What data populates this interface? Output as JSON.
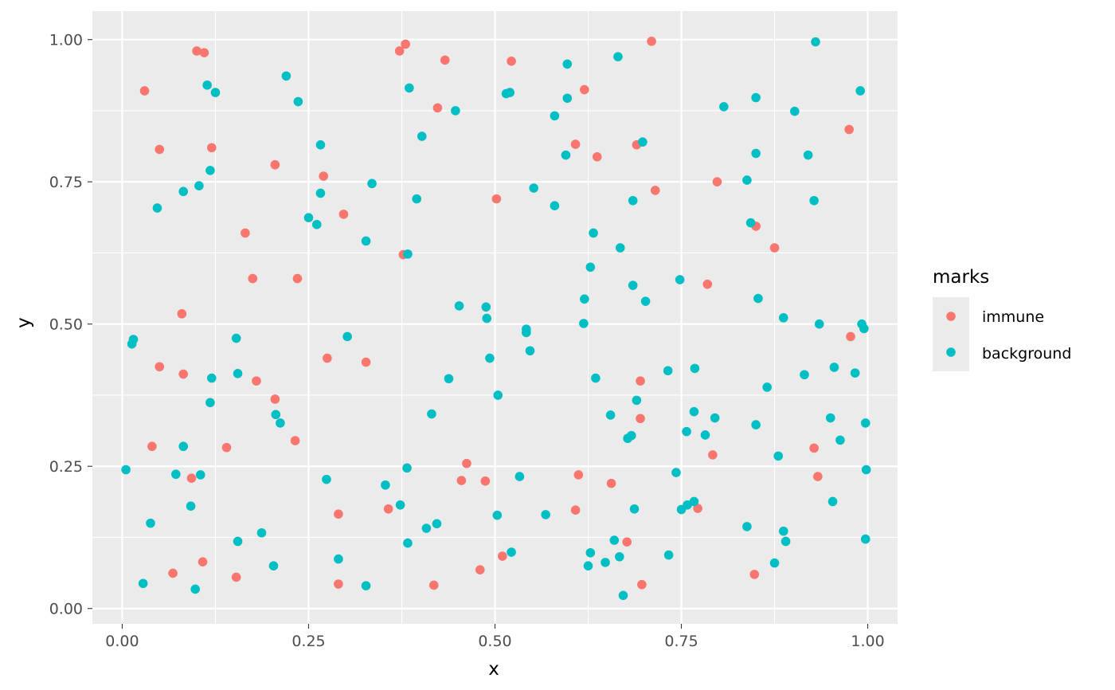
{
  "chart_data": {
    "type": "scatter",
    "title": "",
    "xlabel": "x",
    "ylabel": "y",
    "xlim": [
      -0.04,
      1.04
    ],
    "ylim": [
      -0.027,
      1.05
    ],
    "x_ticks": [
      0.0,
      0.25,
      0.5,
      0.75,
      1.0
    ],
    "y_ticks": [
      0.0,
      0.25,
      0.5,
      0.75,
      1.0
    ],
    "x_tick_labels": [
      "0.00",
      "0.25",
      "0.50",
      "0.75",
      "1.00"
    ],
    "y_tick_labels": [
      "0.00",
      "0.25",
      "0.50",
      "0.75",
      "1.00"
    ],
    "grid": true,
    "panel_background": "#EBEBEB",
    "legend": {
      "title": "marks",
      "position": "right"
    },
    "series": [
      {
        "name": "immune",
        "color": "#F8766D",
        "points": [
          [
            0.1,
            0.98
          ],
          [
            0.11,
            0.977
          ],
          [
            0.03,
            0.91
          ],
          [
            0.05,
            0.807
          ],
          [
            0.12,
            0.81
          ],
          [
            0.205,
            0.78
          ],
          [
            0.165,
            0.66
          ],
          [
            0.175,
            0.58
          ],
          [
            0.235,
            0.58
          ],
          [
            0.08,
            0.518
          ],
          [
            0.05,
            0.425
          ],
          [
            0.082,
            0.412
          ],
          [
            0.18,
            0.4
          ],
          [
            0.205,
            0.368
          ],
          [
            0.04,
            0.285
          ],
          [
            0.14,
            0.283
          ],
          [
            0.232,
            0.295
          ],
          [
            0.093,
            0.229
          ],
          [
            0.068,
            0.062
          ],
          [
            0.108,
            0.082
          ],
          [
            0.153,
            0.055
          ],
          [
            0.27,
            0.76
          ],
          [
            0.297,
            0.693
          ],
          [
            0.275,
            0.44
          ],
          [
            0.327,
            0.433
          ],
          [
            0.29,
            0.166
          ],
          [
            0.29,
            0.043
          ],
          [
            0.372,
            0.98
          ],
          [
            0.38,
            0.992
          ],
          [
            0.433,
            0.964
          ],
          [
            0.423,
            0.88
          ],
          [
            0.377,
            0.622
          ],
          [
            0.357,
            0.175
          ],
          [
            0.418,
            0.041
          ],
          [
            0.462,
            0.255
          ],
          [
            0.455,
            0.225
          ],
          [
            0.487,
            0.224
          ],
          [
            0.48,
            0.068
          ],
          [
            0.522,
            0.962
          ],
          [
            0.502,
            0.72
          ],
          [
            0.51,
            0.092
          ],
          [
            0.71,
            0.997
          ],
          [
            0.62,
            0.912
          ],
          [
            0.608,
            0.816
          ],
          [
            0.637,
            0.794
          ],
          [
            0.69,
            0.815
          ],
          [
            0.715,
            0.735
          ],
          [
            0.695,
            0.4
          ],
          [
            0.695,
            0.334
          ],
          [
            0.612,
            0.235
          ],
          [
            0.608,
            0.173
          ],
          [
            0.656,
            0.22
          ],
          [
            0.677,
            0.117
          ],
          [
            0.697,
            0.042
          ],
          [
            0.975,
            0.842
          ],
          [
            0.798,
            0.75
          ],
          [
            0.85,
            0.672
          ],
          [
            0.875,
            0.634
          ],
          [
            0.785,
            0.57
          ],
          [
            0.977,
            0.478
          ],
          [
            0.792,
            0.27
          ],
          [
            0.928,
            0.282
          ],
          [
            0.933,
            0.232
          ],
          [
            0.772,
            0.176
          ],
          [
            0.848,
            0.06
          ]
        ]
      },
      {
        "name": "background",
        "color": "#00BFC4",
        "points": [
          [
            0.114,
            0.92
          ],
          [
            0.125,
            0.907
          ],
          [
            0.22,
            0.936
          ],
          [
            0.236,
            0.891
          ],
          [
            0.118,
            0.77
          ],
          [
            0.082,
            0.733
          ],
          [
            0.103,
            0.743
          ],
          [
            0.047,
            0.704
          ],
          [
            0.015,
            0.473
          ],
          [
            0.013,
            0.465
          ],
          [
            0.153,
            0.475
          ],
          [
            0.155,
            0.413
          ],
          [
            0.12,
            0.405
          ],
          [
            0.118,
            0.362
          ],
          [
            0.206,
            0.341
          ],
          [
            0.212,
            0.326
          ],
          [
            0.082,
            0.285
          ],
          [
            0.072,
            0.236
          ],
          [
            0.105,
            0.235
          ],
          [
            0.005,
            0.244
          ],
          [
            0.092,
            0.18
          ],
          [
            0.038,
            0.15
          ],
          [
            0.155,
            0.118
          ],
          [
            0.187,
            0.133
          ],
          [
            0.028,
            0.044
          ],
          [
            0.098,
            0.034
          ],
          [
            0.203,
            0.075
          ],
          [
            0.266,
            0.815
          ],
          [
            0.266,
            0.73
          ],
          [
            0.25,
            0.687
          ],
          [
            0.261,
            0.675
          ],
          [
            0.335,
            0.747
          ],
          [
            0.327,
            0.646
          ],
          [
            0.302,
            0.478
          ],
          [
            0.274,
            0.227
          ],
          [
            0.29,
            0.087
          ],
          [
            0.327,
            0.04
          ],
          [
            0.385,
            0.915
          ],
          [
            0.402,
            0.83
          ],
          [
            0.395,
            0.72
          ],
          [
            0.383,
            0.623
          ],
          [
            0.447,
            0.875
          ],
          [
            0.452,
            0.532
          ],
          [
            0.438,
            0.404
          ],
          [
            0.415,
            0.342
          ],
          [
            0.382,
            0.247
          ],
          [
            0.353,
            0.217
          ],
          [
            0.373,
            0.182
          ],
          [
            0.383,
            0.115
          ],
          [
            0.408,
            0.141
          ],
          [
            0.422,
            0.149
          ],
          [
            0.597,
            0.957
          ],
          [
            0.515,
            0.905
          ],
          [
            0.52,
            0.907
          ],
          [
            0.597,
            0.897
          ],
          [
            0.58,
            0.866
          ],
          [
            0.595,
            0.797
          ],
          [
            0.552,
            0.739
          ],
          [
            0.58,
            0.708
          ],
          [
            0.488,
            0.53
          ],
          [
            0.489,
            0.51
          ],
          [
            0.542,
            0.491
          ],
          [
            0.542,
            0.485
          ],
          [
            0.547,
            0.453
          ],
          [
            0.493,
            0.44
          ],
          [
            0.504,
            0.375
          ],
          [
            0.533,
            0.232
          ],
          [
            0.503,
            0.164
          ],
          [
            0.568,
            0.165
          ],
          [
            0.522,
            0.099
          ],
          [
            0.665,
            0.97
          ],
          [
            0.698,
            0.82
          ],
          [
            0.685,
            0.717
          ],
          [
            0.632,
            0.66
          ],
          [
            0.668,
            0.634
          ],
          [
            0.628,
            0.6
          ],
          [
            0.685,
            0.568
          ],
          [
            0.702,
            0.54
          ],
          [
            0.62,
            0.544
          ],
          [
            0.619,
            0.501
          ],
          [
            0.635,
            0.405
          ],
          [
            0.69,
            0.366
          ],
          [
            0.655,
            0.34
          ],
          [
            0.683,
            0.304
          ],
          [
            0.678,
            0.299
          ],
          [
            0.687,
            0.175
          ],
          [
            0.628,
            0.098
          ],
          [
            0.625,
            0.075
          ],
          [
            0.648,
            0.081
          ],
          [
            0.66,
            0.12
          ],
          [
            0.667,
            0.091
          ],
          [
            0.672,
            0.023
          ],
          [
            0.93,
            0.996
          ],
          [
            0.99,
            0.91
          ],
          [
            0.807,
            0.882
          ],
          [
            0.85,
            0.898
          ],
          [
            0.902,
            0.874
          ],
          [
            0.85,
            0.8
          ],
          [
            0.92,
            0.797
          ],
          [
            0.838,
            0.753
          ],
          [
            0.928,
            0.717
          ],
          [
            0.843,
            0.678
          ],
          [
            0.748,
            0.578
          ],
          [
            0.853,
            0.545
          ],
          [
            0.992,
            0.5
          ],
          [
            0.995,
            0.492
          ],
          [
            0.935,
            0.5
          ],
          [
            0.887,
            0.511
          ],
          [
            0.732,
            0.418
          ],
          [
            0.768,
            0.422
          ],
          [
            0.955,
            0.424
          ],
          [
            0.983,
            0.414
          ],
          [
            0.915,
            0.411
          ],
          [
            0.865,
            0.389
          ],
          [
            0.767,
            0.346
          ],
          [
            0.795,
            0.335
          ],
          [
            0.85,
            0.323
          ],
          [
            0.95,
            0.335
          ],
          [
            0.997,
            0.326
          ],
          [
            0.757,
            0.311
          ],
          [
            0.782,
            0.305
          ],
          [
            0.963,
            0.296
          ],
          [
            0.88,
            0.268
          ],
          [
            0.743,
            0.239
          ],
          [
            0.998,
            0.244
          ],
          [
            0.75,
            0.174
          ],
          [
            0.758,
            0.182
          ],
          [
            0.767,
            0.188
          ],
          [
            0.953,
            0.188
          ],
          [
            0.838,
            0.144
          ],
          [
            0.887,
            0.136
          ],
          [
            0.89,
            0.118
          ],
          [
            0.997,
            0.122
          ],
          [
            0.733,
            0.094
          ],
          [
            0.875,
            0.08
          ]
        ]
      }
    ]
  }
}
